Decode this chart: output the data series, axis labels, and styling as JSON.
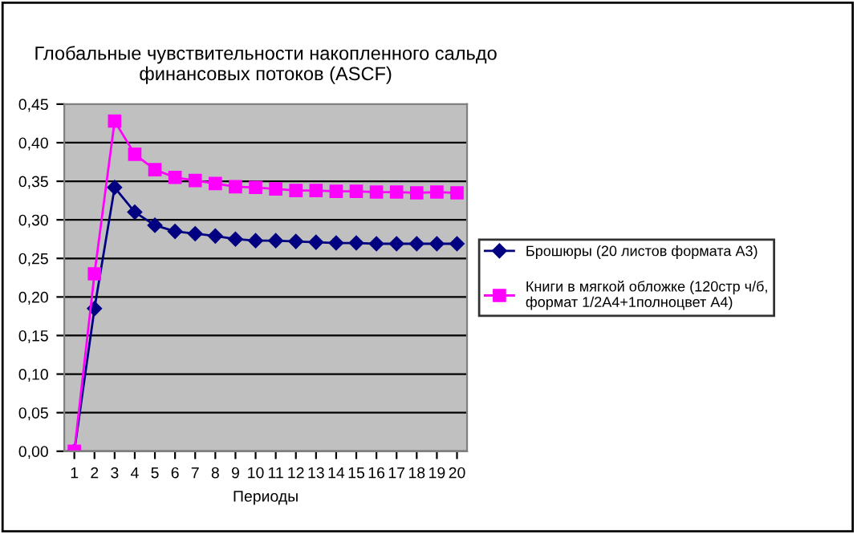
{
  "chart_data": {
    "type": "line",
    "title": "Глобальные чувствительности накопленного сальдо финансовых потоков (ASCF)",
    "xlabel": "Периоды",
    "categories": [
      "1",
      "2",
      "3",
      "4",
      "5",
      "6",
      "7",
      "8",
      "9",
      "10",
      "11",
      "12",
      "13",
      "14",
      "15",
      "16",
      "17",
      "18",
      "19",
      "20"
    ],
    "series": [
      {
        "name": "Брошюры (20 листов формата А3)",
        "color": "#000080",
        "marker": "diamond",
        "values": [
          0,
          0.185,
          0.342,
          0.31,
          0.293,
          0.285,
          0.282,
          0.279,
          0.275,
          0.273,
          0.273,
          0.272,
          0.271,
          0.27,
          0.27,
          0.269,
          0.269,
          0.269,
          0.269,
          0.269
        ]
      },
      {
        "name": "Книги в мягкой обложке (120стр ч/б, формат 1/2А4+1полноцвет А4)",
        "color": "#ff00ff",
        "marker": "square",
        "values": [
          0,
          0.23,
          0.428,
          0.385,
          0.365,
          0.355,
          0.351,
          0.347,
          0.343,
          0.342,
          0.34,
          0.338,
          0.338,
          0.337,
          0.337,
          0.336,
          0.336,
          0.335,
          0.336,
          0.335
        ]
      }
    ],
    "ylim": [
      0,
      0.45
    ],
    "yticks": [
      {
        "value": 0,
        "label": "0,00"
      },
      {
        "value": 0.05,
        "label": "0,05"
      },
      {
        "value": 0.1,
        "label": "0,10"
      },
      {
        "value": 0.15,
        "label": "0,15"
      },
      {
        "value": 0.2,
        "label": "0,20"
      },
      {
        "value": 0.25,
        "label": "0,25"
      },
      {
        "value": 0.3,
        "label": "0,30"
      },
      {
        "value": 0.35,
        "label": "0,35"
      },
      {
        "value": 0.4,
        "label": "0,40"
      },
      {
        "value": 0.45,
        "label": "0,45"
      }
    ],
    "grid": "y",
    "legend": "right",
    "line_style": "solid"
  }
}
